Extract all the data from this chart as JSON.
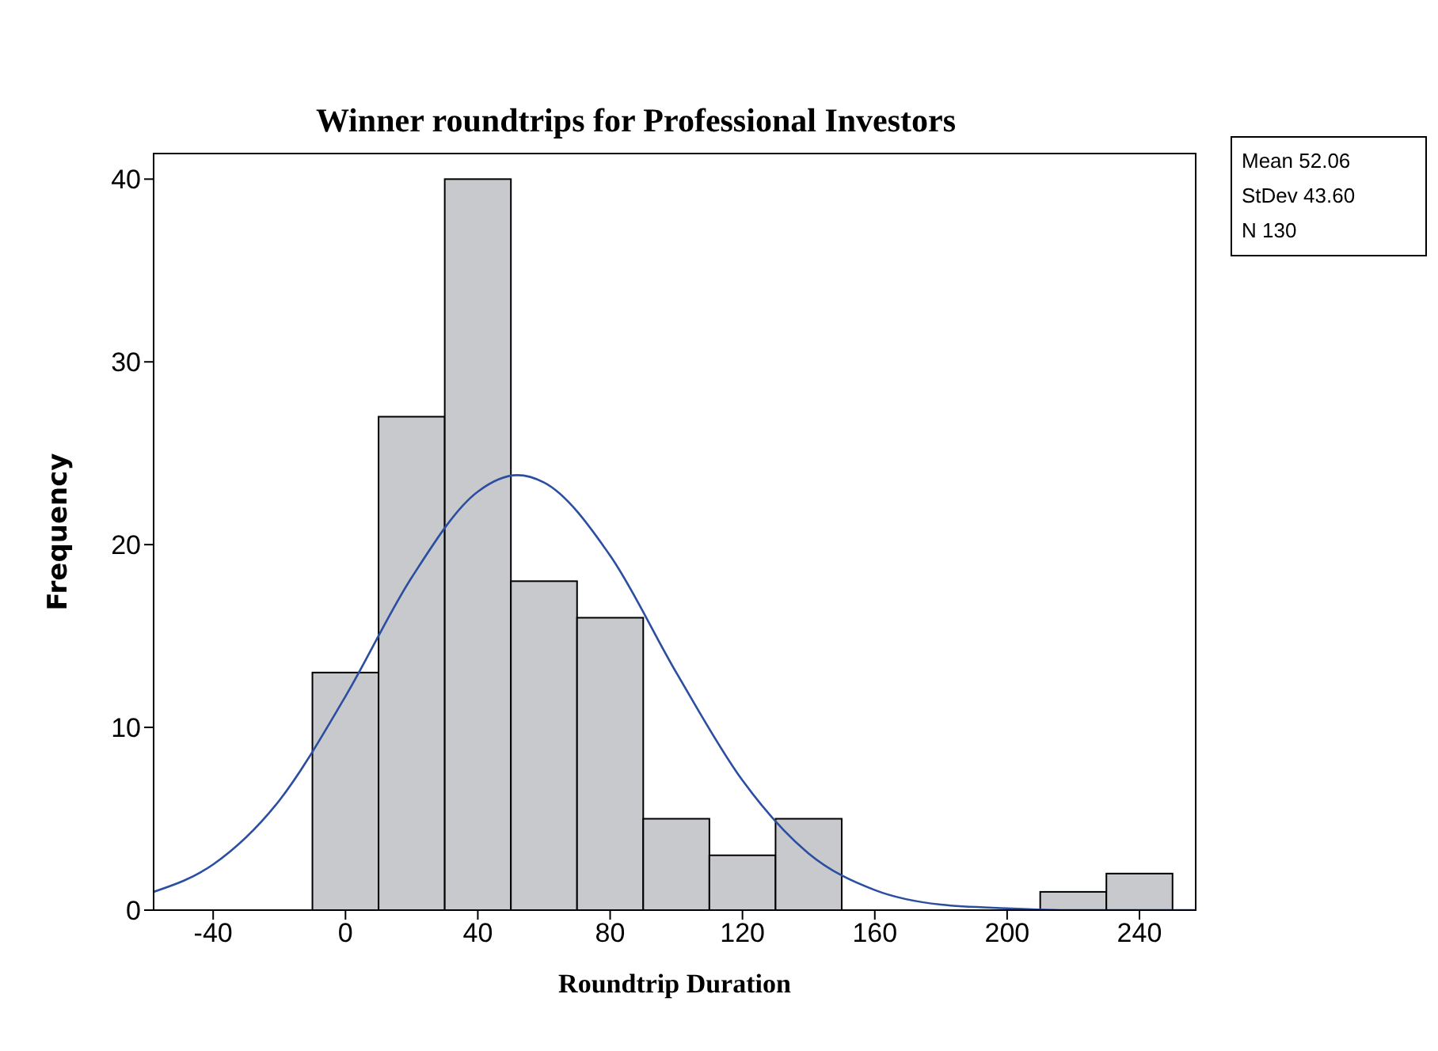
{
  "chart_data": {
    "type": "histogram",
    "title": "Winner roundtrips for Professional Investors",
    "xlabel": "Roundtrip Duration",
    "ylabel": "Frequency",
    "bins": [
      -10,
      10,
      30,
      50,
      70,
      90,
      110,
      130,
      150,
      170,
      190,
      210,
      230,
      250
    ],
    "values": [
      13,
      27,
      40,
      18,
      16,
      5,
      3,
      5,
      0,
      0,
      0,
      1,
      2
    ],
    "color": "#c8c9cc",
    "series": [
      {
        "type": "line",
        "color": "#2b4ea0",
        "x": [
          -58,
          -40,
          -20,
          0,
          20,
          40,
          52,
          60,
          80,
          100,
          120,
          140,
          160,
          180,
          200,
          220,
          240,
          257
        ],
        "values": [
          1,
          2.5,
          6,
          11.7,
          18.2,
          22.9,
          23.8,
          23.4,
          19.4,
          13,
          7.1,
          3.1,
          1.1,
          0.3,
          0.1,
          0,
          0,
          0
        ]
      }
    ],
    "xlim": [
      -58,
      257
    ],
    "xticks": [
      -40,
      0,
      40,
      80,
      120,
      160,
      200,
      240
    ],
    "ylim": [
      0,
      41.4
    ],
    "yticks": [
      0,
      10,
      20,
      30,
      40
    ],
    "marker": "none",
    "annotations": [
      "Mean 52.06",
      "StDev 43.60",
      "N 130"
    ]
  }
}
